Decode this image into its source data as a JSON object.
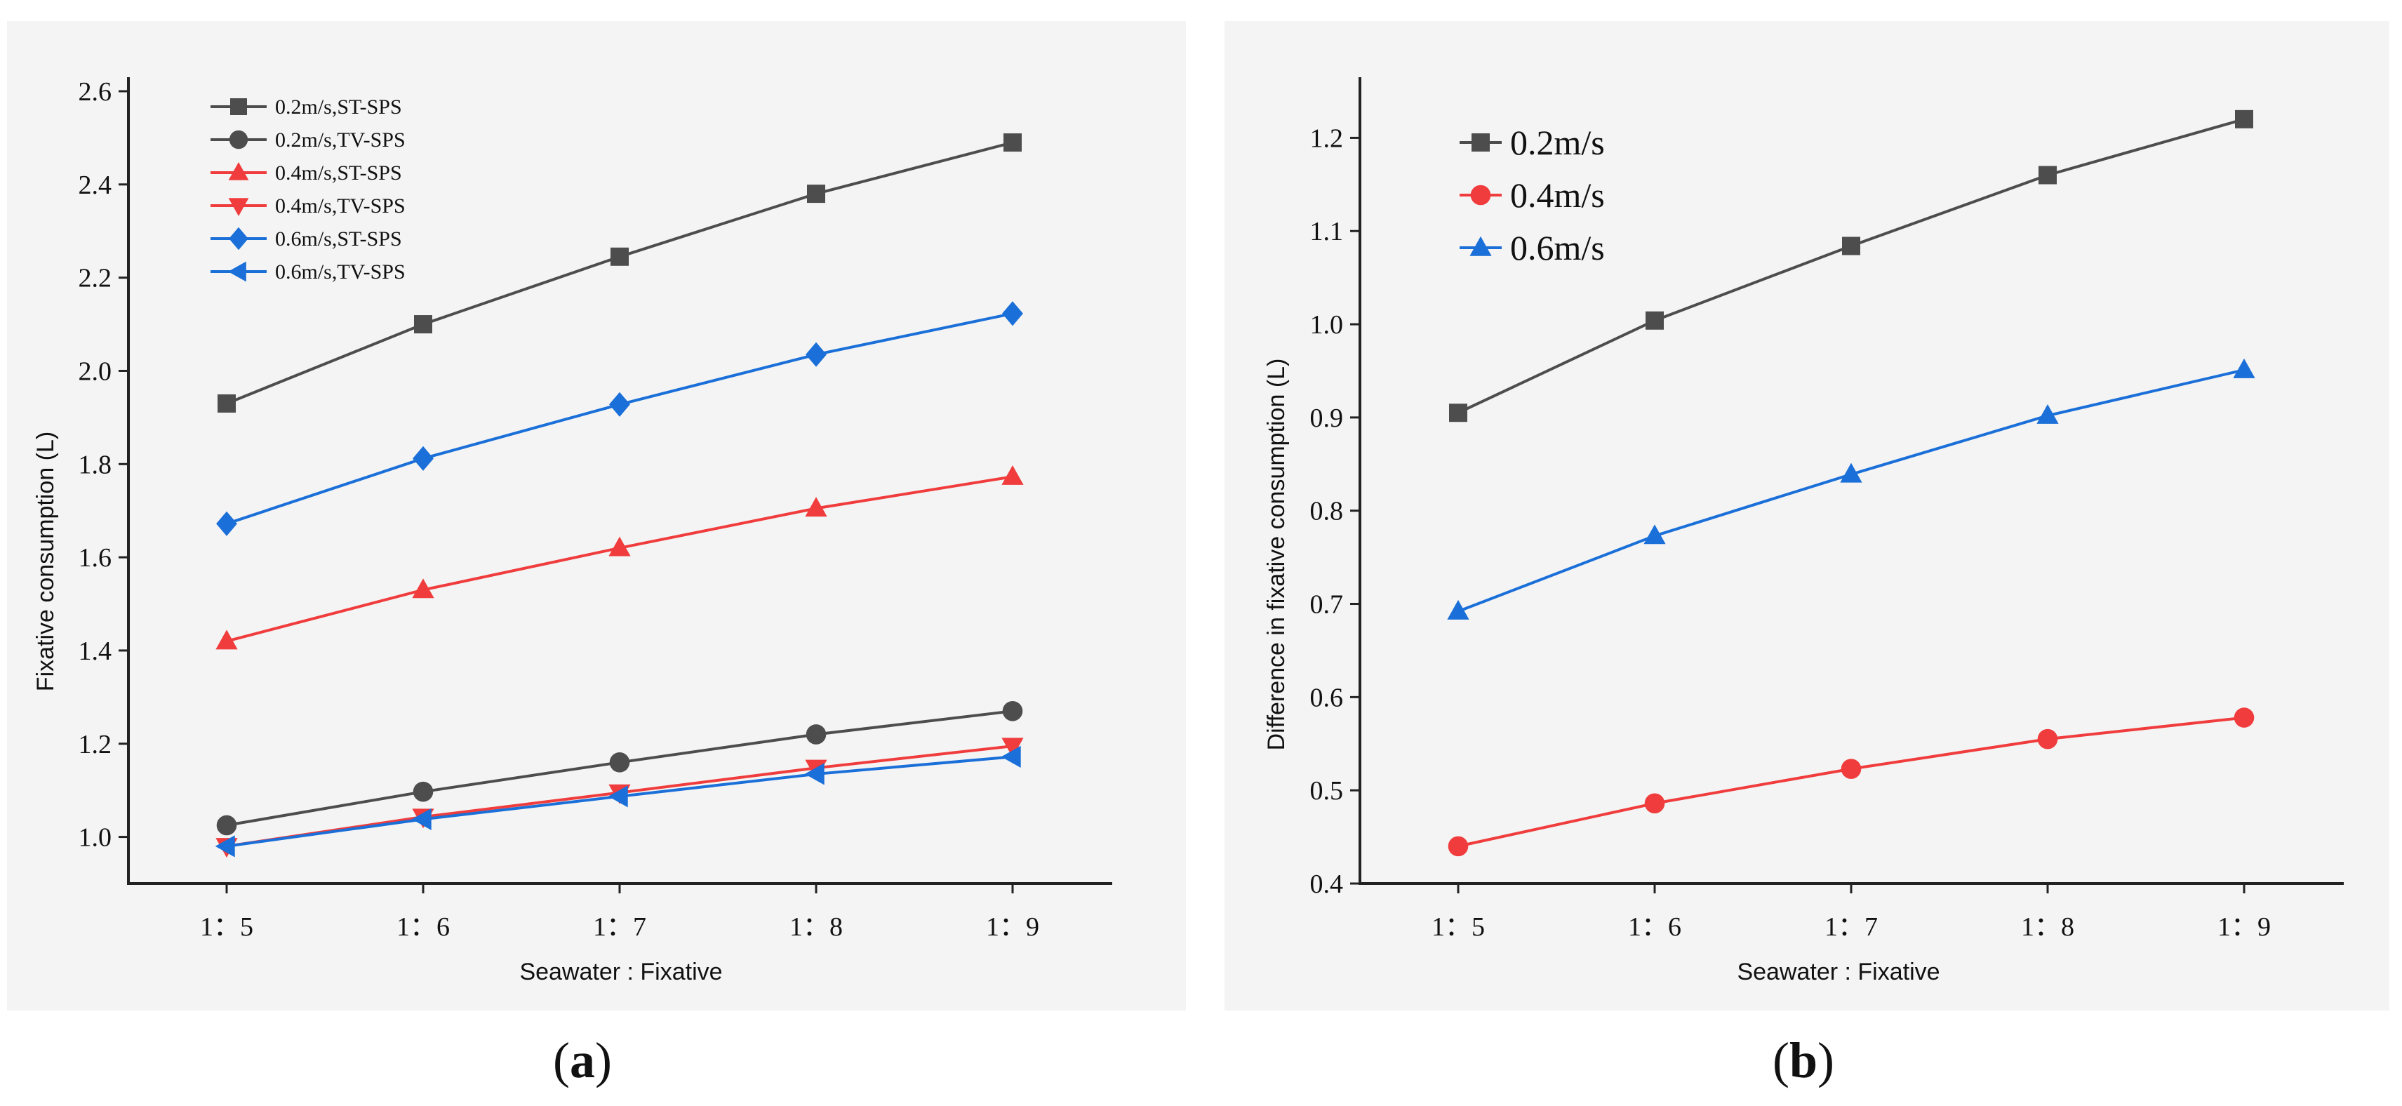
{
  "colors": {
    "gray": "#4d4d4d",
    "red": "#f03c3c",
    "blue": "#1a6fd8"
  },
  "chart_data": [
    {
      "type": "line",
      "panel": "a",
      "caption_open": "(",
      "caption_letter": "a",
      "caption_close": ")",
      "xlabel": "Seawater : Fixative",
      "ylabel": "Fixative consumption (L)",
      "categories": [
        "1：5",
        "1：6",
        "1：7",
        "1：8",
        "1：9"
      ],
      "ylim": [
        0.9,
        2.6
      ],
      "yticks": [
        1.0,
        1.2,
        1.4,
        1.6,
        1.8,
        2.0,
        2.2,
        2.4,
        2.6
      ],
      "ytick_labels": [
        "1.0",
        "1.2",
        "1.4",
        "1.6",
        "1.8",
        "2.0",
        "2.2",
        "2.4",
        "2.6"
      ],
      "legend_position": "top-left",
      "series": [
        {
          "name": "0.2m/s,ST-SPS",
          "color": "#4d4d4d",
          "marker": "square",
          "values": [
            1.93,
            2.1,
            2.245,
            2.38,
            2.49
          ]
        },
        {
          "name": "0.2m/s,TV-SPS",
          "color": "#4d4d4d",
          "marker": "circle",
          "values": [
            1.025,
            1.097,
            1.16,
            1.22,
            1.27
          ]
        },
        {
          "name": "0.4m/s,ST-SPS",
          "color": "#f03c3c",
          "marker": "triangle-up",
          "values": [
            1.42,
            1.53,
            1.62,
            1.705,
            1.773
          ]
        },
        {
          "name": "0.4m/s,TV-SPS",
          "color": "#f03c3c",
          "marker": "triangle-down",
          "values": [
            0.98,
            1.043,
            1.095,
            1.148,
            1.195
          ]
        },
        {
          "name": "0.6m/s,ST-SPS",
          "color": "#1a6fd8",
          "marker": "diamond",
          "values": [
            1.672,
            1.812,
            1.928,
            2.035,
            2.123
          ]
        },
        {
          "name": "0.6m/s,TV-SPS",
          "color": "#1a6fd8",
          "marker": "triangle-left",
          "values": [
            0.98,
            1.038,
            1.087,
            1.135,
            1.172
          ]
        }
      ]
    },
    {
      "type": "line",
      "panel": "b",
      "caption_open": "(",
      "caption_letter": "b",
      "caption_close": ")",
      "xlabel": "Seawater : Fixative",
      "ylabel": "Difference in fixative consumption (L)",
      "categories": [
        "1：5",
        "1：6",
        "1：7",
        "1：8",
        "1：9"
      ],
      "ylim": [
        0.4,
        1.25
      ],
      "yticks": [
        0.4,
        0.5,
        0.6,
        0.7,
        0.8,
        0.9,
        1.0,
        1.1,
        1.2
      ],
      "ytick_labels": [
        "0.4",
        "0.5",
        "0.6",
        "0.7",
        "0.8",
        "0.9",
        "1.0",
        "1.1",
        "1.2"
      ],
      "legend_position": "top-left",
      "series": [
        {
          "name": "0.2m/s",
          "color": "#4d4d4d",
          "marker": "square",
          "values": [
            0.905,
            1.004,
            1.084,
            1.16,
            1.22
          ]
        },
        {
          "name": "0.4m/s",
          "color": "#f03c3c",
          "marker": "circle",
          "values": [
            0.44,
            0.486,
            0.523,
            0.555,
            0.578
          ]
        },
        {
          "name": "0.6m/s",
          "color": "#1a6fd8",
          "marker": "triangle-up",
          "values": [
            0.692,
            0.773,
            0.839,
            0.902,
            0.951
          ]
        }
      ]
    }
  ]
}
